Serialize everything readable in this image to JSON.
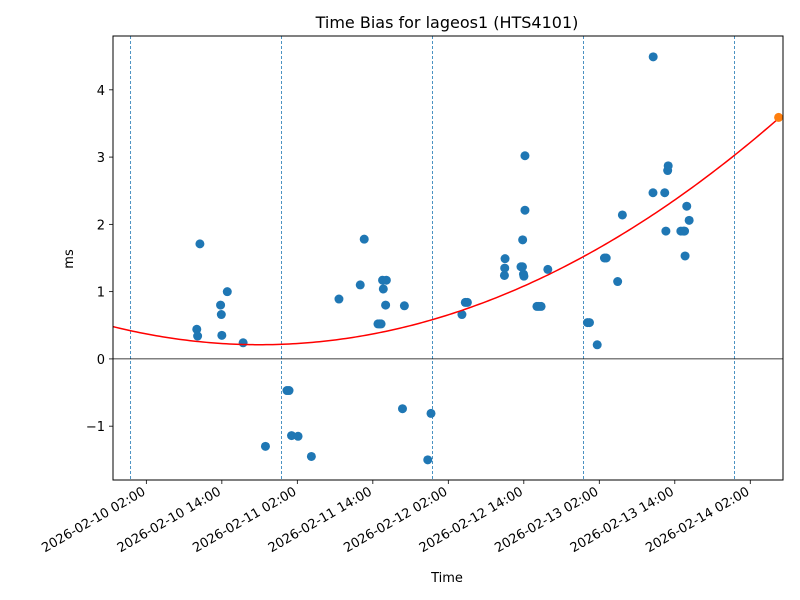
{
  "chart_data": {
    "type": "scatter",
    "title": "Time Bias for lageos1 (HTS4101)",
    "xlabel": "Time",
    "ylabel": "ms",
    "x_is_datetime": true,
    "xlim": [
      "2026-02-09T20:42",
      "2026-02-14T07:12"
    ],
    "ylim": [
      -1.8,
      4.8
    ],
    "x_ticks": [
      {
        "value": "2026-02-10T02:00",
        "label": "2026-02-10 02:00"
      },
      {
        "value": "2026-02-10T14:00",
        "label": "2026-02-10 14:00"
      },
      {
        "value": "2026-02-11T02:00",
        "label": "2026-02-11 02:00"
      },
      {
        "value": "2026-02-11T14:00",
        "label": "2026-02-11 14:00"
      },
      {
        "value": "2026-02-12T02:00",
        "label": "2026-02-12 02:00"
      },
      {
        "value": "2026-02-12T14:00",
        "label": "2026-02-12 14:00"
      },
      {
        "value": "2026-02-13T02:00",
        "label": "2026-02-13 02:00"
      },
      {
        "value": "2026-02-13T14:00",
        "label": "2026-02-13 14:00"
      },
      {
        "value": "2026-02-14T02:00",
        "label": "2026-02-14 02:00"
      }
    ],
    "y_ticks": [
      -1,
      0,
      1,
      2,
      3,
      4
    ],
    "grid": false,
    "zero_line": 0,
    "vertical_dashed_lines": [
      "2026-02-09T23:30",
      "2026-02-10T23:30",
      "2026-02-11T23:30",
      "2026-02-12T23:30",
      "2026-02-13T23:30"
    ],
    "series": [
      {
        "type": "scatter",
        "color": "#1f77b4",
        "points": [
          {
            "x": "2026-02-10T10:01",
            "y": 0.44
          },
          {
            "x": "2026-02-10T10:09",
            "y": 0.34
          },
          {
            "x": "2026-02-10T10:31",
            "y": 1.71
          },
          {
            "x": "2026-02-10T13:48",
            "y": 0.8
          },
          {
            "x": "2026-02-10T13:55",
            "y": 0.66
          },
          {
            "x": "2026-02-10T14:00",
            "y": 0.35
          },
          {
            "x": "2026-02-10T14:52",
            "y": 1.0
          },
          {
            "x": "2026-02-10T17:23",
            "y": 0.24
          },
          {
            "x": "2026-02-10T20:56",
            "y": -1.3
          },
          {
            "x": "2026-02-11T00:21",
            "y": -0.47
          },
          {
            "x": "2026-02-11T00:41",
            "y": -0.47
          },
          {
            "x": "2026-02-11T01:05",
            "y": -1.14
          },
          {
            "x": "2026-02-11T02:07",
            "y": -1.15
          },
          {
            "x": "2026-02-11T04:14",
            "y": -1.45
          },
          {
            "x": "2026-02-11T08:37",
            "y": 0.89
          },
          {
            "x": "2026-02-11T12:00",
            "y": 1.1
          },
          {
            "x": "2026-02-11T12:38",
            "y": 1.78
          },
          {
            "x": "2026-02-11T14:49",
            "y": 0.52
          },
          {
            "x": "2026-02-11T15:04",
            "y": 0.52
          },
          {
            "x": "2026-02-11T15:19",
            "y": 0.52
          },
          {
            "x": "2026-02-11T15:33",
            "y": 1.17
          },
          {
            "x": "2026-02-11T15:40",
            "y": 1.04
          },
          {
            "x": "2026-02-11T16:02",
            "y": 0.8
          },
          {
            "x": "2026-02-11T16:09",
            "y": 1.17
          },
          {
            "x": "2026-02-11T18:43",
            "y": -0.74
          },
          {
            "x": "2026-02-11T19:01",
            "y": 0.79
          },
          {
            "x": "2026-02-11T22:44",
            "y": -1.5
          },
          {
            "x": "2026-02-11T23:15",
            "y": -0.81
          },
          {
            "x": "2026-02-12T04:10",
            "y": 0.66
          },
          {
            "x": "2026-02-12T04:42",
            "y": 0.84
          },
          {
            "x": "2026-02-12T05:02",
            "y": 0.84
          },
          {
            "x": "2026-02-12T10:55",
            "y": 1.24
          },
          {
            "x": "2026-02-12T10:58",
            "y": 1.35
          },
          {
            "x": "2026-02-12T11:01",
            "y": 1.49
          },
          {
            "x": "2026-02-12T13:33",
            "y": 1.37
          },
          {
            "x": "2026-02-12T13:47",
            "y": 1.37
          },
          {
            "x": "2026-02-12T13:57",
            "y": 1.26
          },
          {
            "x": "2026-02-12T14:01",
            "y": 1.23
          },
          {
            "x": "2026-02-12T13:49",
            "y": 1.77
          },
          {
            "x": "2026-02-12T14:11",
            "y": 2.21
          },
          {
            "x": "2026-02-12T14:11",
            "y": 3.02
          },
          {
            "x": "2026-02-12T16:05",
            "y": 0.78
          },
          {
            "x": "2026-02-12T16:24",
            "y": 0.78
          },
          {
            "x": "2026-02-12T16:45",
            "y": 0.78
          },
          {
            "x": "2026-02-12T17:49",
            "y": 1.33
          },
          {
            "x": "2026-02-13T00:07",
            "y": 0.54
          },
          {
            "x": "2026-02-13T00:26",
            "y": 0.54
          },
          {
            "x": "2026-02-13T01:40",
            "y": 0.21
          },
          {
            "x": "2026-02-13T02:49",
            "y": 1.5
          },
          {
            "x": "2026-02-13T03:06",
            "y": 1.5
          },
          {
            "x": "2026-02-13T04:55",
            "y": 1.15
          },
          {
            "x": "2026-02-13T05:40",
            "y": 2.14
          },
          {
            "x": "2026-02-13T10:32",
            "y": 2.47
          },
          {
            "x": "2026-02-13T10:34",
            "y": 4.49
          },
          {
            "x": "2026-02-13T12:24",
            "y": 2.47
          },
          {
            "x": "2026-02-13T12:35",
            "y": 1.9
          },
          {
            "x": "2026-02-13T12:52",
            "y": 2.8
          },
          {
            "x": "2026-02-13T12:57",
            "y": 2.87
          },
          {
            "x": "2026-02-13T14:58",
            "y": 1.9
          },
          {
            "x": "2026-02-13T15:21",
            "y": 1.9
          },
          {
            "x": "2026-02-13T15:33",
            "y": 1.9
          },
          {
            "x": "2026-02-13T15:38",
            "y": 1.53
          },
          {
            "x": "2026-02-13T15:54",
            "y": 2.27
          },
          {
            "x": "2026-02-13T16:17",
            "y": 2.06
          }
        ]
      },
      {
        "type": "line",
        "color": "#ff0000",
        "curve": "quadratic",
        "points": [
          {
            "x": "2026-02-09T20:42",
            "y": 0.46
          },
          {
            "x": "2026-02-10T20:00",
            "y": 0.25
          },
          {
            "x": "2026-02-11T14:00",
            "y": 0.38
          },
          {
            "x": "2026-02-12T02:00",
            "y": 0.63
          },
          {
            "x": "2026-02-12T14:00",
            "y": 1.07
          },
          {
            "x": "2026-02-13T02:00",
            "y": 1.67
          },
          {
            "x": "2026-02-13T14:00",
            "y": 2.34
          },
          {
            "x": "2026-02-14T06:30",
            "y": 3.59
          }
        ]
      },
      {
        "type": "scatter",
        "color": "#ff7f0e",
        "points": [
          {
            "x": "2026-02-14T06:30",
            "y": 3.59
          }
        ]
      }
    ]
  }
}
